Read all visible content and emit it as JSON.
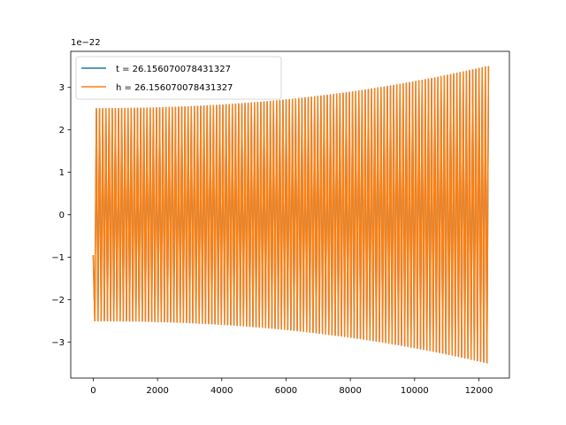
{
  "chart_data": {
    "type": "line",
    "title": "",
    "xlabel": "",
    "ylabel": "",
    "y_scale_label": "1e−22",
    "xlim": [
      -700,
      12950
    ],
    "ylim": [
      -3.85,
      3.85
    ],
    "x_ticks": [
      0,
      2000,
      4000,
      6000,
      8000,
      10000,
      12000
    ],
    "x_tick_labels": [
      "0",
      "2000",
      "4000",
      "6000",
      "8000",
      "10000",
      "12000"
    ],
    "y_ticks": [
      -3,
      -2,
      -1,
      0,
      1,
      2,
      3
    ],
    "y_tick_labels": [
      "−3",
      "−2",
      "−1",
      "0",
      "1",
      "2",
      "3"
    ],
    "grid": false,
    "legend_position": "upper-left",
    "signal": {
      "x_start": 0,
      "x_end": 12300,
      "start_value": -0.95,
      "amplitude_start": 2.5,
      "amplitude_end": 3.5,
      "cycles": 125
    },
    "series": [
      {
        "name": "t = 26.156070078431327",
        "color": "#1f77b4"
      },
      {
        "name": "h = 26.156070078431327",
        "color": "#ff7f0e"
      }
    ]
  }
}
